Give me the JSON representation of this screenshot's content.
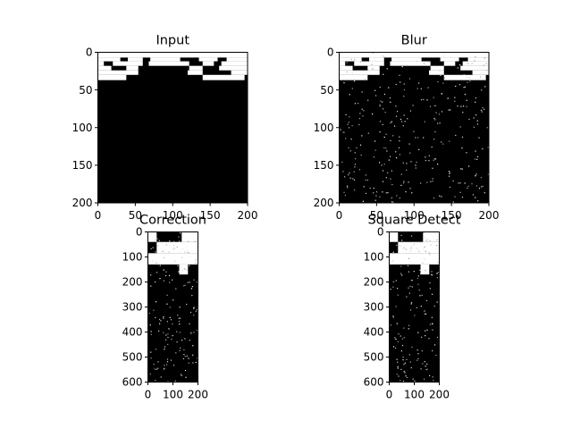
{
  "chart_data": [
    {
      "type": "heatmap",
      "title": "Input",
      "xlabel": "",
      "ylabel": "",
      "xlim": [
        0,
        200
      ],
      "ylim": [
        200,
        0
      ],
      "xticks": [
        0,
        50,
        100,
        150,
        200
      ],
      "yticks": [
        0,
        50,
        100,
        150,
        200
      ],
      "colormap": "gray",
      "background": "#000000",
      "noise_density": 0,
      "bands": [
        {
          "y": [
            0,
            7
          ],
          "runs": [
            [
              0,
              200,
              1
            ]
          ]
        },
        {
          "y": [
            7,
            12
          ],
          "runs": [
            [
              0,
              30,
              1
            ],
            [
              30,
              40,
              0
            ],
            [
              40,
              60,
              1
            ],
            [
              60,
              70,
              0
            ],
            [
              70,
              110,
              1
            ],
            [
              110,
              135,
              0
            ],
            [
              135,
              160,
              1
            ],
            [
              160,
              172,
              0
            ],
            [
              172,
              200,
              1
            ]
          ]
        },
        {
          "y": [
            12,
            18
          ],
          "runs": [
            [
              0,
              8,
              1
            ],
            [
              8,
              20,
              0
            ],
            [
              20,
              60,
              1
            ],
            [
              60,
              68,
              0
            ],
            [
              68,
              122,
              1
            ],
            [
              122,
              140,
              0
            ],
            [
              140,
              155,
              1
            ],
            [
              155,
              165,
              0
            ],
            [
              165,
              200,
              1
            ]
          ]
        },
        {
          "y": [
            18,
            24
          ],
          "runs": [
            [
              0,
              18,
              1
            ],
            [
              18,
              38,
              0
            ],
            [
              38,
              54,
              1
            ],
            [
              54,
              122,
              0
            ],
            [
              122,
              140,
              1
            ],
            [
              140,
              162,
              0
            ],
            [
              162,
              200,
              1
            ]
          ]
        },
        {
          "y": [
            24,
            30
          ],
          "runs": [
            [
              0,
              54,
              1
            ],
            [
              54,
              120,
              0
            ],
            [
              120,
              140,
              1
            ],
            [
              140,
              178,
              0
            ],
            [
              178,
              200,
              1
            ]
          ]
        },
        {
          "y": [
            30,
            37
          ],
          "runs": [
            [
              0,
              38,
              1
            ],
            [
              38,
              140,
              0
            ],
            [
              140,
              196,
              1
            ],
            [
              196,
              200,
              0
            ]
          ]
        },
        {
          "y": [
            37,
            200
          ],
          "runs": [
            [
              0,
              200,
              0
            ]
          ]
        }
      ]
    },
    {
      "type": "heatmap",
      "title": "Blur",
      "xlabel": "",
      "ylabel": "",
      "xlim": [
        0,
        200
      ],
      "ylim": [
        200,
        0
      ],
      "xticks": [
        0,
        50,
        100,
        150,
        200
      ],
      "yticks": [
        0,
        50,
        100,
        150,
        200
      ],
      "colormap": "gray",
      "background": "#000000",
      "noise_density": 0.012,
      "bands": [
        {
          "y": [
            0,
            7
          ],
          "runs": [
            [
              0,
              200,
              1
            ]
          ]
        },
        {
          "y": [
            7,
            12
          ],
          "runs": [
            [
              0,
              30,
              1
            ],
            [
              30,
              40,
              0
            ],
            [
              40,
              60,
              1
            ],
            [
              60,
              70,
              0
            ],
            [
              70,
              110,
              1
            ],
            [
              110,
              135,
              0
            ],
            [
              135,
              160,
              1
            ],
            [
              160,
              172,
              0
            ],
            [
              172,
              200,
              1
            ]
          ]
        },
        {
          "y": [
            12,
            18
          ],
          "runs": [
            [
              0,
              8,
              1
            ],
            [
              8,
              20,
              0
            ],
            [
              20,
              60,
              1
            ],
            [
              60,
              68,
              0
            ],
            [
              68,
              122,
              1
            ],
            [
              122,
              140,
              0
            ],
            [
              140,
              155,
              1
            ],
            [
              155,
              165,
              0
            ],
            [
              165,
              200,
              1
            ]
          ]
        },
        {
          "y": [
            18,
            24
          ],
          "runs": [
            [
              0,
              18,
              1
            ],
            [
              18,
              38,
              0
            ],
            [
              38,
              54,
              1
            ],
            [
              54,
              122,
              0
            ],
            [
              122,
              140,
              1
            ],
            [
              140,
              162,
              0
            ],
            [
              162,
              200,
              1
            ]
          ]
        },
        {
          "y": [
            24,
            30
          ],
          "runs": [
            [
              0,
              54,
              1
            ],
            [
              54,
              120,
              0
            ],
            [
              120,
              140,
              1
            ],
            [
              140,
              178,
              0
            ],
            [
              178,
              200,
              1
            ]
          ]
        },
        {
          "y": [
            30,
            37
          ],
          "runs": [
            [
              0,
              38,
              1
            ],
            [
              38,
              140,
              0
            ],
            [
              140,
              196,
              1
            ],
            [
              196,
              200,
              0
            ]
          ]
        },
        {
          "y": [
            37,
            200
          ],
          "runs": [
            [
              0,
              200,
              0
            ]
          ]
        }
      ]
    },
    {
      "type": "heatmap",
      "title": "Correction",
      "xlabel": "",
      "ylabel": "",
      "xlim": [
        0,
        200
      ],
      "ylim": [
        600,
        0
      ],
      "xticks": [
        0,
        100,
        200
      ],
      "yticks": [
        0,
        100,
        200,
        300,
        400,
        500,
        600
      ],
      "colormap": "gray",
      "background": "#000000",
      "noise_density": 0.018,
      "bands": [
        {
          "y": [
            0,
            40
          ],
          "runs": [
            [
              0,
              35,
              1
            ],
            [
              35,
              135,
              0
            ],
            [
              135,
              200,
              1
            ]
          ]
        },
        {
          "y": [
            40,
            85
          ],
          "runs": [
            [
              0,
              35,
              0
            ],
            [
              35,
              200,
              1
            ]
          ]
        },
        {
          "y": [
            85,
            130
          ],
          "runs": [
            [
              0,
              200,
              1
            ]
          ]
        },
        {
          "y": [
            130,
            170
          ],
          "runs": [
            [
              0,
              125,
              0
            ],
            [
              125,
              160,
              1
            ],
            [
              160,
              200,
              0
            ]
          ]
        },
        {
          "y": [
            170,
            600
          ],
          "runs": [
            [
              0,
              200,
              0
            ]
          ]
        }
      ]
    },
    {
      "type": "heatmap",
      "title": "Square Detect",
      "xlabel": "",
      "ylabel": "",
      "xlim": [
        0,
        200
      ],
      "ylim": [
        600,
        0
      ],
      "xticks": [
        0,
        100,
        200
      ],
      "yticks": [
        0,
        100,
        200,
        300,
        400,
        500,
        600
      ],
      "colormap": "gray",
      "background": "#000000",
      "noise_density": 0.018,
      "bands": [
        {
          "y": [
            0,
            40
          ],
          "runs": [
            [
              0,
              35,
              1
            ],
            [
              35,
              135,
              0
            ],
            [
              135,
              200,
              1
            ]
          ]
        },
        {
          "y": [
            40,
            85
          ],
          "runs": [
            [
              0,
              35,
              0
            ],
            [
              35,
              200,
              1
            ]
          ]
        },
        {
          "y": [
            85,
            130
          ],
          "runs": [
            [
              0,
              200,
              1
            ]
          ]
        },
        {
          "y": [
            130,
            170
          ],
          "runs": [
            [
              0,
              125,
              0
            ],
            [
              125,
              160,
              1
            ],
            [
              160,
              200,
              0
            ]
          ]
        },
        {
          "y": [
            170,
            600
          ],
          "runs": [
            [
              0,
              200,
              0
            ]
          ]
        }
      ]
    }
  ]
}
